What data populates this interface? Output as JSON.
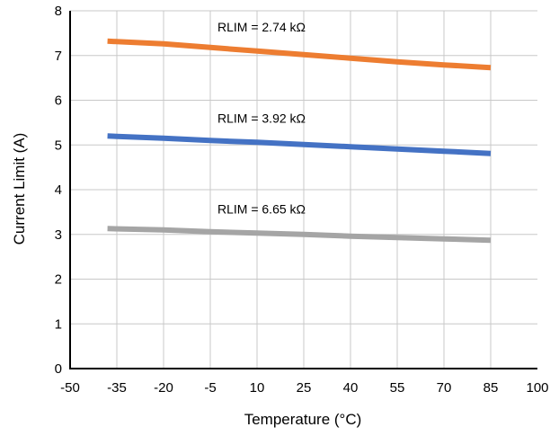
{
  "chart_data": {
    "type": "line",
    "title": "",
    "xlabel": "Temperature (°C)",
    "ylabel": "Current Limit (A)",
    "xlim": [
      -50,
      100
    ],
    "ylim": [
      0,
      8
    ],
    "xticks": [
      -50,
      -35,
      -20,
      -5,
      10,
      25,
      40,
      55,
      70,
      85,
      100
    ],
    "yticks": [
      0,
      1,
      2,
      3,
      4,
      5,
      6,
      7,
      8
    ],
    "grid": true,
    "legend": "none",
    "series": [
      {
        "name": "RLIM = 2.74 kΩ",
        "color": "#ED7D31",
        "x": [
          -38,
          -20,
          -5,
          10,
          25,
          40,
          55,
          70,
          85
        ],
        "y": [
          7.32,
          7.26,
          7.18,
          7.1,
          7.02,
          6.94,
          6.86,
          6.79,
          6.73
        ]
      },
      {
        "name": "RLIM = 3.92 kΩ",
        "color": "#4472C4",
        "x": [
          -38,
          -20,
          -5,
          10,
          25,
          40,
          55,
          70,
          85
        ],
        "y": [
          5.2,
          5.15,
          5.1,
          5.06,
          5.01,
          4.96,
          4.91,
          4.86,
          4.81
        ]
      },
      {
        "name": "RLIM = 6.65 kΩ",
        "color": "#A5A5A5",
        "x": [
          -38,
          -20,
          -5,
          10,
          25,
          40,
          55,
          70,
          85
        ],
        "y": [
          3.13,
          3.1,
          3.06,
          3.03,
          3.0,
          2.96,
          2.93,
          2.9,
          2.87
        ]
      }
    ]
  }
}
